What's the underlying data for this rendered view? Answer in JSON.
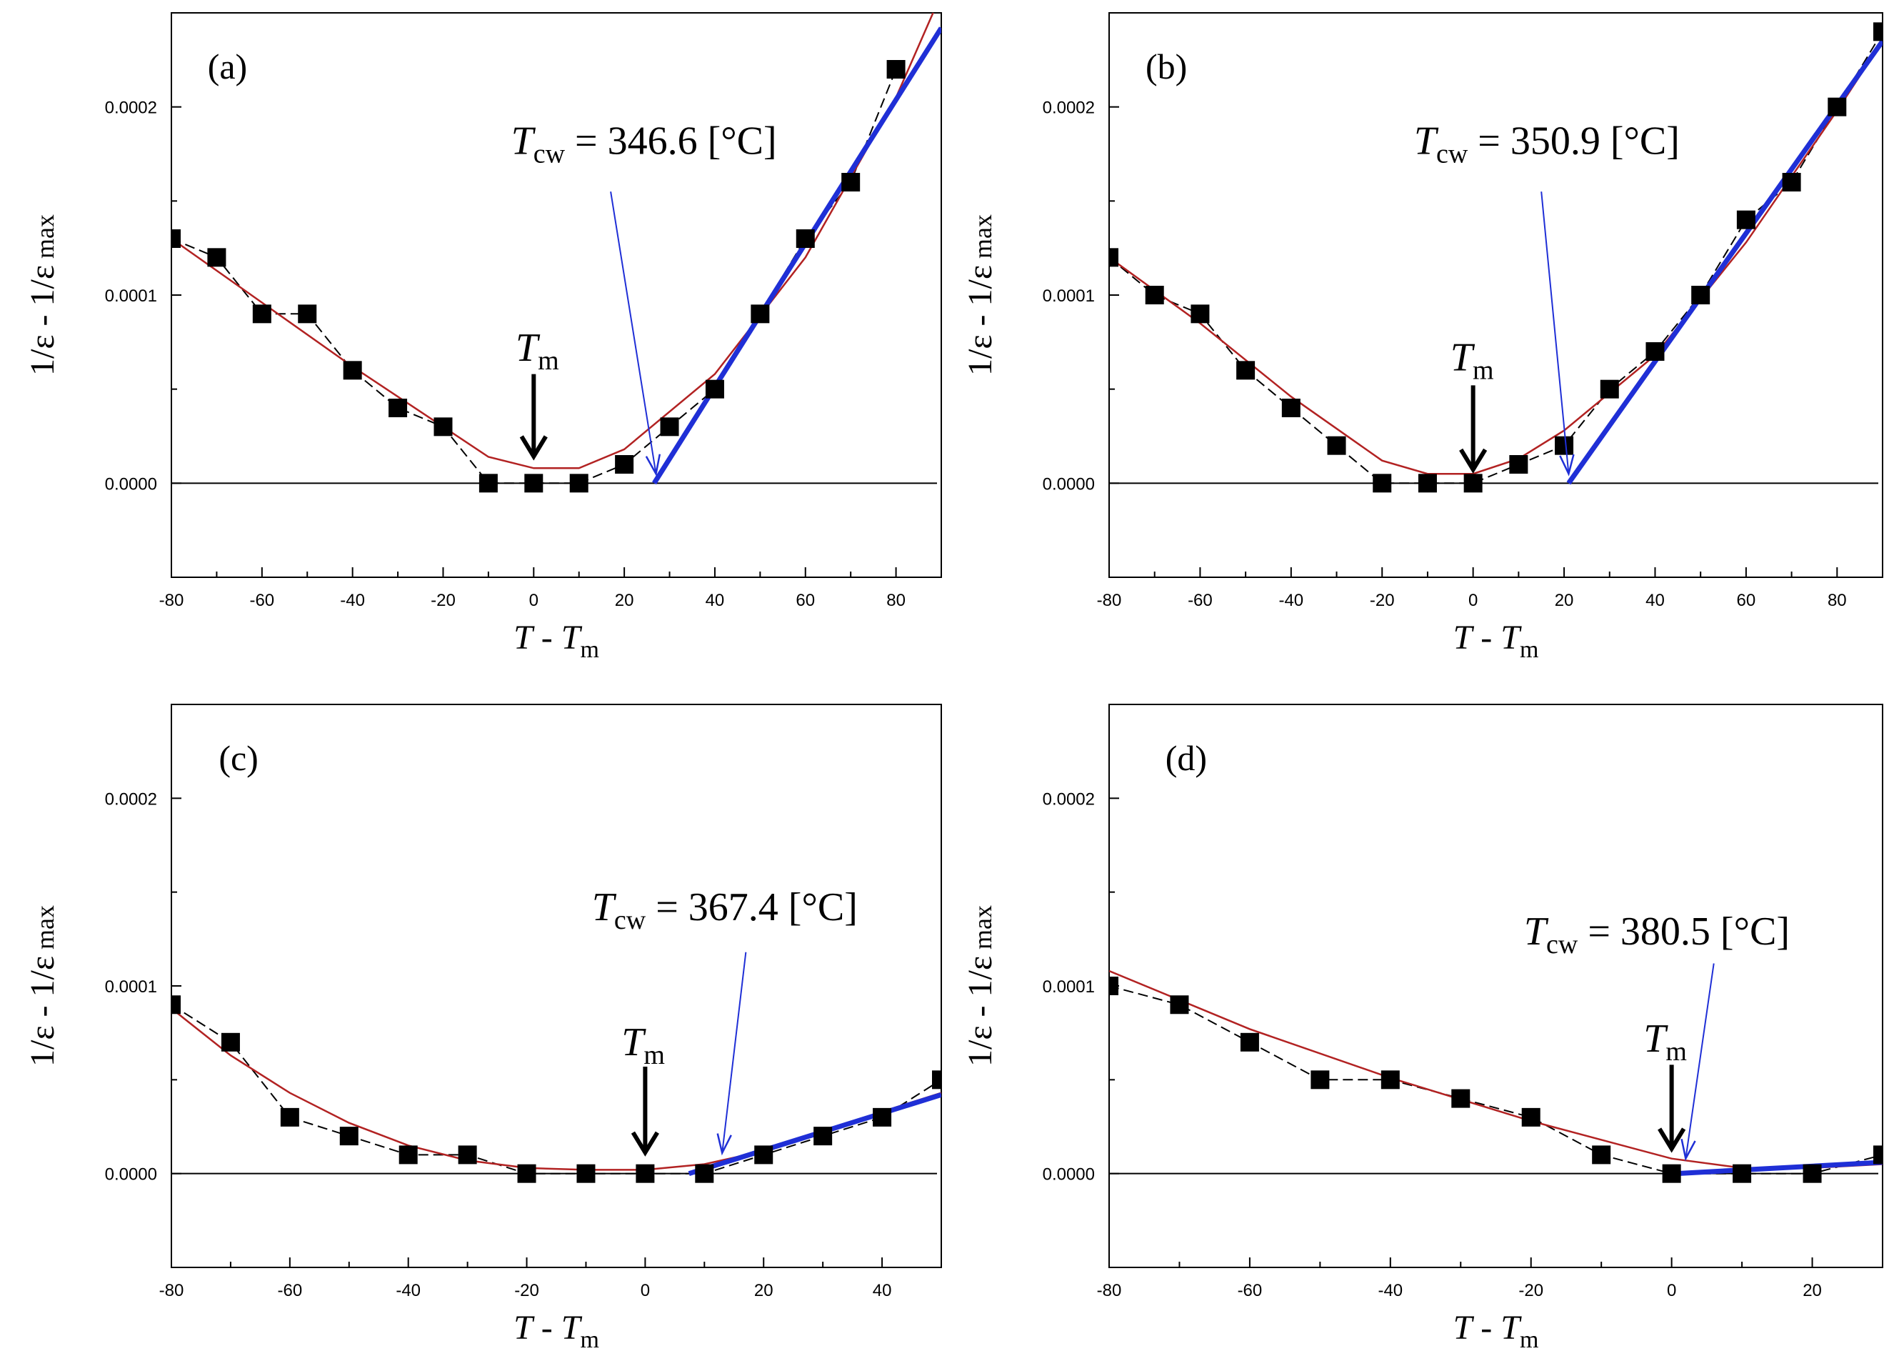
{
  "chart_data": [
    {
      "type": "scatter",
      "panel_label": "(a)",
      "xlabel": {
        "main": "T",
        "sep": " - ",
        "sym": "T",
        "sub": "m"
      },
      "ylabel": {
        "a": "1/ε - 1/ε",
        "sub": "max"
      },
      "xlim": [
        -80,
        90
      ],
      "ylim": [
        -5e-05,
        0.00025
      ],
      "xticks": [
        -80,
        -60,
        -40,
        -20,
        0,
        20,
        40,
        60,
        80
      ],
      "yticks": [
        "0.0000",
        "0.0001",
        "0.0002"
      ],
      "ytick_values": [
        0,
        0.0001,
        0.0002
      ],
      "series": [
        {
          "role": "measured",
          "x": [
            -80,
            -70,
            -60,
            -50,
            -40,
            -30,
            -20,
            -10,
            0,
            10,
            20,
            30,
            40,
            50,
            60,
            70,
            80
          ],
          "y": [
            0.00013,
            0.00012,
            9e-05,
            9e-05,
            6e-05,
            4e-05,
            3e-05,
            0.0,
            0.0,
            0.0,
            1e-05,
            3e-05,
            5e-05,
            9e-05,
            0.00013,
            0.00016,
            0.00022
          ]
        },
        {
          "role": "fit",
          "x": [
            -80,
            -60,
            -40,
            -20,
            -10,
            0,
            10,
            20,
            40,
            60,
            80,
            90
          ],
          "y": [
            0.00013,
            9.6e-05,
            6.2e-05,
            3e-05,
            1.4e-05,
            8e-06,
            8e-06,
            1.8e-05,
            5.8e-05,
            0.00012,
            0.000205,
            0.00026
          ]
        },
        {
          "role": "curie-weiss-line",
          "x": [
            26.6,
            90
          ],
          "y": [
            0.0,
            0.000242
          ]
        }
      ],
      "annotations": {
        "tcw": {
          "sym": "T",
          "sub": "cw",
          "text": " = 346.6 [°C]"
        },
        "tm": {
          "sym": "T",
          "sub": "m"
        }
      }
    },
    {
      "type": "scatter",
      "panel_label": "(b)",
      "xlabel": {
        "main": "T",
        "sep": " - ",
        "sym": "T",
        "sub": "m"
      },
      "ylabel": {
        "a": "1/ε - 1/ε",
        "sub": "max"
      },
      "xlim": [
        -80,
        90
      ],
      "ylim": [
        -5e-05,
        0.00025
      ],
      "xticks": [
        -80,
        -60,
        -40,
        -20,
        0,
        20,
        40,
        60,
        80
      ],
      "yticks": [
        "0.0000",
        "0.0001",
        "0.0002"
      ],
      "ytick_values": [
        0,
        0.0001,
        0.0002
      ],
      "series": [
        {
          "role": "measured",
          "x": [
            -80,
            -70,
            -60,
            -50,
            -40,
            -30,
            -20,
            -10,
            0,
            10,
            20,
            30,
            40,
            50,
            60,
            70,
            80,
            90
          ],
          "y": [
            0.00012,
            0.0001,
            9e-05,
            6e-05,
            4e-05,
            2e-05,
            0.0,
            0.0,
            0.0,
            1e-05,
            2e-05,
            5e-05,
            7e-05,
            0.0001,
            0.00014,
            0.00016,
            0.0002,
            0.00024
          ]
        },
        {
          "role": "fit",
          "x": [
            -80,
            -60,
            -40,
            -20,
            -10,
            0,
            10,
            20,
            40,
            60,
            80,
            90
          ],
          "y": [
            0.00012,
            8.5e-05,
            4.6e-05,
            1.2e-05,
            5e-06,
            5e-06,
            1.3e-05,
            2.8e-05,
            6.8e-05,
            0.000128,
            0.000198,
            0.000235
          ]
        },
        {
          "role": "curie-weiss-line",
          "x": [
            21,
            90
          ],
          "y": [
            0.0,
            0.000235
          ]
        }
      ],
      "annotations": {
        "tcw": {
          "sym": "T",
          "sub": "cw",
          "text": " = 350.9 [°C]"
        },
        "tm": {
          "sym": "T",
          "sub": "m"
        }
      }
    },
    {
      "type": "scatter",
      "panel_label": "(c)",
      "xlabel": {
        "main": "T",
        "sep": " - ",
        "sym": "T",
        "sub": "m"
      },
      "ylabel": {
        "a": "1/ε - 1/ε",
        "sub": "max"
      },
      "xlim": [
        -80,
        50
      ],
      "ylim": [
        -5e-05,
        0.00025
      ],
      "xticks": [
        -80,
        -60,
        -40,
        -20,
        0,
        20,
        40
      ],
      "yticks": [
        "0.0000",
        "0.0001",
        "0.0002"
      ],
      "ytick_values": [
        0,
        0.0001,
        0.0002
      ],
      "series": [
        {
          "role": "measured",
          "x": [
            -80,
            -70,
            -60,
            -50,
            -40,
            -30,
            -20,
            -10,
            0,
            10,
            20,
            30,
            40,
            50
          ],
          "y": [
            9e-05,
            7e-05,
            3e-05,
            2e-05,
            1e-05,
            1e-05,
            0.0,
            0.0,
            0.0,
            0.0,
            1e-05,
            2e-05,
            3e-05,
            5e-05
          ]
        },
        {
          "role": "fit",
          "x": [
            -80,
            -70,
            -60,
            -50,
            -40,
            -30,
            -20,
            -10,
            0,
            10,
            20,
            30,
            40,
            50
          ],
          "y": [
            8.8e-05,
            6.3e-05,
            4.3e-05,
            2.7e-05,
            1.5e-05,
            7e-06,
            3e-06,
            2e-06,
            2e-06,
            5e-06,
            1.2e-05,
            2.2e-05,
            3.3e-05,
            4.3e-05
          ]
        },
        {
          "role": "curie-weiss-line",
          "x": [
            7.4,
            50
          ],
          "y": [
            0.0,
            4.2e-05
          ]
        }
      ],
      "annotations": {
        "tcw": {
          "sym": "T",
          "sub": "cw",
          "text": " = 367.4 [°C]"
        },
        "tm": {
          "sym": "T",
          "sub": "m"
        }
      }
    },
    {
      "type": "scatter",
      "panel_label": "(d)",
      "xlabel": {
        "main": "T",
        "sep": " - ",
        "sym": "T",
        "sub": "m"
      },
      "ylabel": {
        "a": "1/ε - 1/ε",
        "sub": "max"
      },
      "xlim": [
        -80,
        30
      ],
      "ylim": [
        -5e-05,
        0.00025
      ],
      "xticks": [
        -80,
        -60,
        -40,
        -20,
        0,
        20
      ],
      "yticks": [
        "0.0000",
        "0.0001",
        "0.0002"
      ],
      "ytick_values": [
        0,
        0.0001,
        0.0002
      ],
      "series": [
        {
          "role": "measured",
          "x": [
            -80,
            -70,
            -60,
            -50,
            -40,
            -30,
            -20,
            -10,
            0,
            10,
            20,
            30
          ],
          "y": [
            0.0001,
            9e-05,
            7e-05,
            5e-05,
            5e-05,
            4e-05,
            3e-05,
            1e-05,
            0.0,
            0.0,
            0.0,
            1e-05
          ]
        },
        {
          "role": "fit",
          "x": [
            -80,
            -60,
            -40,
            -20,
            0,
            10,
            20,
            30
          ],
          "y": [
            0.000108,
            7.7e-05,
            5.1e-05,
            2.8e-05,
            8e-06,
            3e-06,
            3e-06,
            5e-06
          ]
        },
        {
          "role": "curie-weiss-line",
          "x": [
            0.5,
            30
          ],
          "y": [
            0.0,
            6e-06
          ]
        }
      ],
      "annotations": {
        "tcw": {
          "sym": "T",
          "sub": "cw",
          "text": " = 380.5 [°C]"
        },
        "tm": {
          "sym": "T",
          "sub": "m"
        }
      }
    }
  ]
}
